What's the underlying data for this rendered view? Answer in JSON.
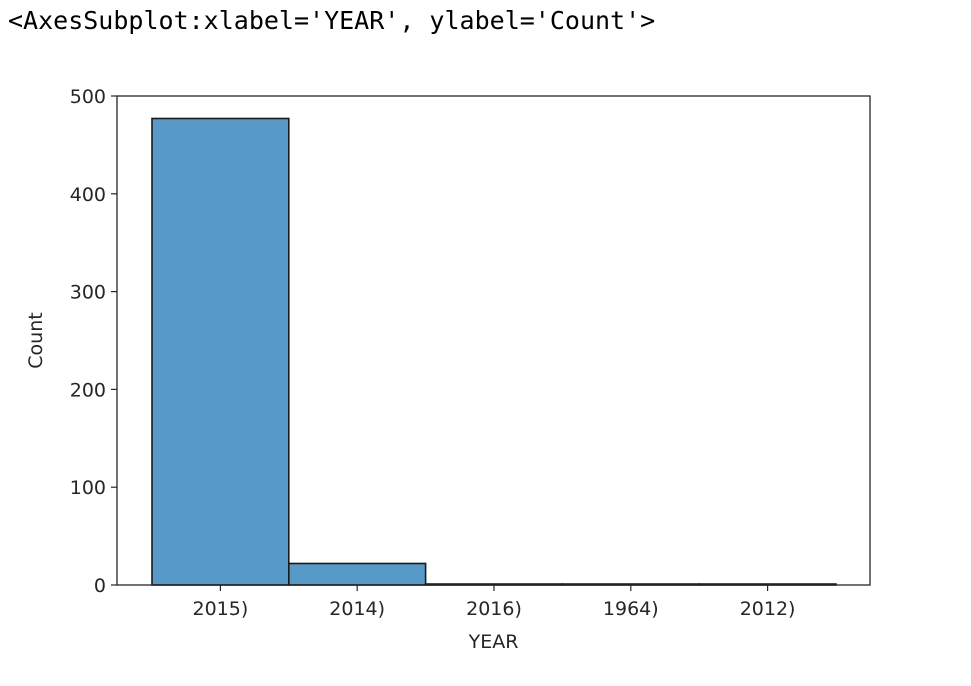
{
  "output_repr": "<AxesSubplot:xlabel='YEAR', ylabel='Count'>",
  "chart_data": {
    "type": "bar",
    "categories": [
      "2015)",
      "2014)",
      "2016)",
      "1964)",
      "2012)"
    ],
    "values": [
      477,
      22,
      1,
      1,
      1
    ],
    "xlabel": "YEAR",
    "ylabel": "Count",
    "ylim": [
      0,
      500
    ],
    "yticks": [
      0,
      100,
      200,
      300,
      400,
      500
    ],
    "grid": false,
    "bar_color": "#5799c7",
    "edge_color": "#1a1a1a"
  }
}
